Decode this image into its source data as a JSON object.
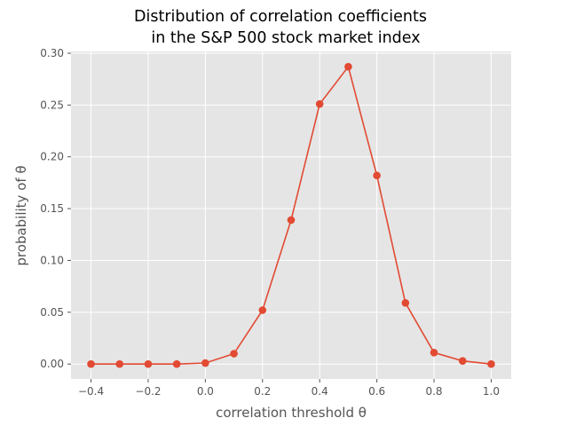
{
  "chart_data": {
    "type": "line",
    "title_line1": "Distribution of correlation coefficients",
    "title_line2": "in the S&P 500 stock market index",
    "xlabel": "correlation threshold θ",
    "ylabel": "probability of θ",
    "xlim": [
      -0.47,
      1.07
    ],
    "ylim": [
      -0.0144,
      0.3017
    ],
    "xticks": [
      -0.4,
      -0.2,
      0.0,
      0.2,
      0.4,
      0.6,
      0.8,
      1.0
    ],
    "xtick_labels": [
      "−0.4",
      "−0.2",
      "0.0",
      "0.2",
      "0.4",
      "0.6",
      "0.8",
      "1.0"
    ],
    "yticks": [
      0.0,
      0.05,
      0.1,
      0.15,
      0.2,
      0.25,
      0.3
    ],
    "ytick_labels": [
      "0.00",
      "0.05",
      "0.10",
      "0.15",
      "0.20",
      "0.25",
      "0.30"
    ],
    "grid": true,
    "series": [
      {
        "color": "#E24A33",
        "x": [
          -0.4,
          -0.3,
          -0.2,
          -0.1,
          0.0,
          0.1,
          0.2,
          0.3,
          0.4,
          0.5,
          0.6,
          0.7,
          0.8,
          0.9,
          1.0
        ],
        "y": [
          0.0,
          0.0,
          0.0,
          0.0,
          0.001,
          0.01,
          0.052,
          0.139,
          0.251,
          0.287,
          0.182,
          0.059,
          0.011,
          0.003,
          0.0
        ]
      }
    ],
    "background_color": "#E5E5E5",
    "grid_color": "#FFFFFF"
  }
}
